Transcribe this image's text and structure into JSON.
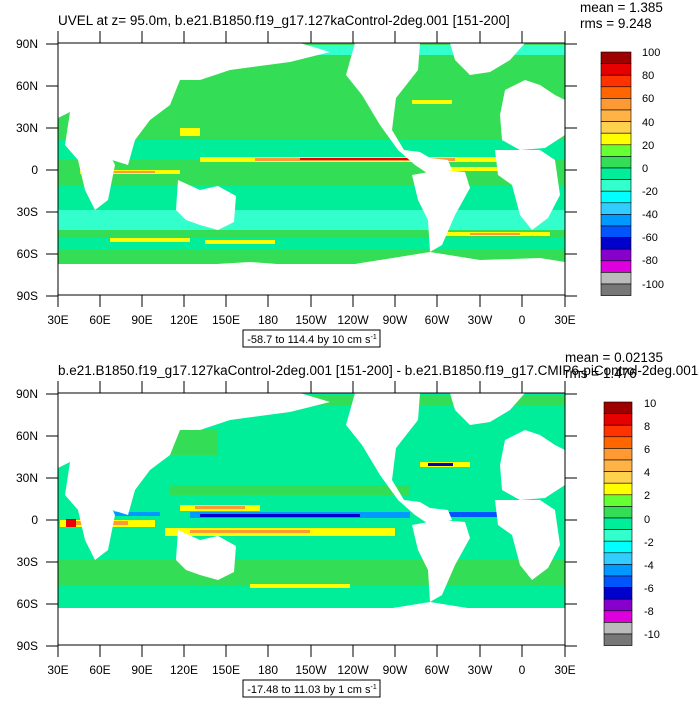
{
  "panels": [
    {
      "title": "UVEL at z=  95.0m, b.e21.B1850.f19_g17.127kaControl-2deg.001 [151-200]",
      "mean": "mean = 1.385",
      "rms": "rms = 9.248",
      "range_label": "-58.7 to 114.4 by 10 cm s",
      "range_unit_sup": "-1",
      "colorbar_labels": [
        "100",
        "80",
        "60",
        "40",
        "20",
        "0",
        "-20",
        "-40",
        "-60",
        "-80",
        "-100"
      ],
      "colors": [
        "#9e0000",
        "#e60000",
        "#ff3300",
        "#ff6600",
        "#ff9933",
        "#ffb347",
        "#ffd24d",
        "#ffff00",
        "#66ff33",
        "#33dd55",
        "#00ee99",
        "#33ffcc",
        "#00ffff",
        "#33ccff",
        "#0099ff",
        "#0055ff",
        "#0000cc",
        "#8800cc",
        "#dd00dd",
        "#bbbbbb",
        "#777777"
      ]
    },
    {
      "title": "b.e21.B1850.f19_g17.127kaControl-2deg.001 [151-200] - b.e21.B1850.f19_g17.CMIP6-piControl-2deg.001",
      "mean": "mean = 0.02135",
      "rms": "rms = 1.476",
      "range_label": "-17.48 to 11.03 by 1 cm s",
      "range_unit_sup": "-1",
      "colorbar_labels": [
        "10",
        "8",
        "6",
        "4",
        "2",
        "0",
        "-2",
        "-4",
        "-6",
        "-8",
        "-10"
      ],
      "colors": [
        "#9e0000",
        "#e60000",
        "#ff3300",
        "#ff6600",
        "#ff9933",
        "#ffb347",
        "#ffd24d",
        "#ffff00",
        "#66ff33",
        "#33dd55",
        "#00ee99",
        "#33ffcc",
        "#00ffff",
        "#33ccff",
        "#0099ff",
        "#0055ff",
        "#0000cc",
        "#8800cc",
        "#dd00dd",
        "#bbbbbb",
        "#777777"
      ]
    }
  ],
  "lat_labels": [
    "90N",
    "60N",
    "30N",
    "0",
    "30S",
    "60S",
    "90S"
  ],
  "lon_labels": [
    "30E",
    "60E",
    "90E",
    "120E",
    "150E",
    "180",
    "150W",
    "120W",
    "90W",
    "60W",
    "30W",
    "0",
    "30E"
  ],
  "palette": {
    "ocean_base": "#33dd55",
    "ocean_band": "#00ee99",
    "ocean_light": "#33ffcc",
    "cyan": "#00ffff",
    "yellow": "#ffff00",
    "orange": "#ff9933",
    "red": "#e60000",
    "blue": "#0000cc",
    "land": "#ffffff"
  }
}
